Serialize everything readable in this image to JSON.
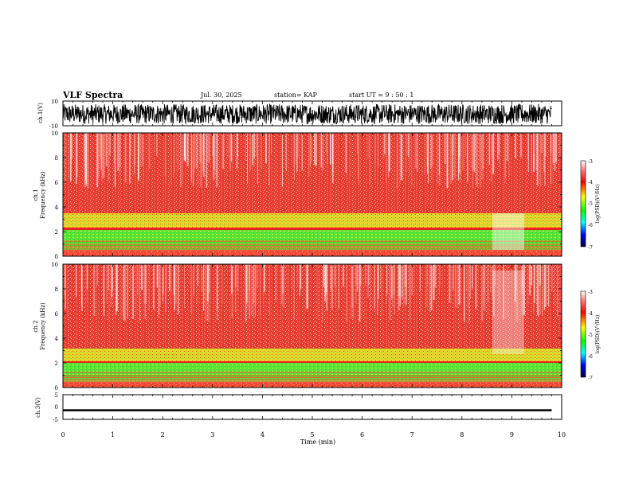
{
  "header": {
    "title": "VLF Spectra",
    "date": "Jul. 30, 2025",
    "station": "station= KAP",
    "start": "start  UT =   9 : 50 : 1"
  },
  "colors": {
    "background": "#ffffff",
    "axis": "#000000",
    "spectrogram_base": "#e8231f",
    "band_yellow": "#e9e42a",
    "band_green": "#27e01f",
    "colorbar_stops": [
      "#ffffff",
      "#ff6060",
      "#ff0000",
      "#ffff00",
      "#00ff00",
      "#00ffff",
      "#0000ff",
      "#00008b"
    ]
  },
  "chart_data": [
    {
      "type": "line",
      "panel": "ch1-waveform",
      "ylabel": "ch.1(V)",
      "ylim": [
        -10,
        10
      ],
      "yticks": [
        "10",
        "-10"
      ],
      "xlim": [
        0,
        10
      ],
      "series": [
        {
          "name": "ch.1 amplitude",
          "mean": -0.5,
          "range": [
            -8,
            8
          ]
        }
      ]
    },
    {
      "type": "heatmap",
      "panel": "ch1-spectrogram",
      "ylabel": "ch.1",
      "ylabel2": "Frequency (kHz)",
      "ylim": [
        0,
        10
      ],
      "yticks": [
        "10",
        "8",
        "6",
        "4",
        "2",
        "0"
      ],
      "xlim": [
        0,
        10
      ],
      "bands": [
        {
          "name": "strong-green",
          "range_khz": [
            0.6,
            2.2
          ]
        },
        {
          "name": "yellow",
          "range_khz": [
            2.2,
            3.2
          ]
        },
        {
          "name": "red",
          "range_khz": [
            3.2,
            10
          ]
        }
      ],
      "colorbar": {
        "label": "log(PSD)(V²/Hz)",
        "range": [
          -7,
          -3
        ],
        "ticks": [
          "-3",
          "-4",
          "-5",
          "-6",
          "-7"
        ]
      }
    },
    {
      "type": "heatmap",
      "panel": "ch2-spectrogram",
      "ylabel": "ch.2",
      "ylabel2": "Frequency (kHz)",
      "ylim": [
        0,
        10
      ],
      "yticks": [
        "10",
        "8",
        "6",
        "4",
        "2",
        "0"
      ],
      "xlim": [
        0,
        10
      ],
      "bands": [
        {
          "name": "strong-green",
          "range_khz": [
            0.5,
            2.0
          ]
        },
        {
          "name": "yellow",
          "range_khz": [
            2.0,
            2.9
          ]
        },
        {
          "name": "red",
          "range_khz": [
            2.9,
            10
          ]
        }
      ],
      "colorbar": {
        "label": "log(PSD)(V²/Hz)",
        "range": [
          -7,
          -3
        ],
        "ticks": [
          "-3",
          "-4",
          "-5",
          "-6",
          "-7"
        ]
      }
    },
    {
      "type": "line",
      "panel": "ch3-waveform",
      "ylabel": "ch.3(V)",
      "ylim": [
        -5,
        5
      ],
      "yticks": [
        "5",
        "0",
        "-5"
      ],
      "xlim": [
        0,
        10
      ],
      "series": [
        {
          "name": "ch.3 amplitude",
          "mean": -1.3,
          "range": [
            -1.7,
            -0.9
          ]
        }
      ]
    }
  ],
  "xaxis": {
    "label": "Time (min)",
    "ticks": [
      "0",
      "1",
      "2",
      "3",
      "4",
      "5",
      "6",
      "7",
      "8",
      "9",
      "10"
    ]
  }
}
